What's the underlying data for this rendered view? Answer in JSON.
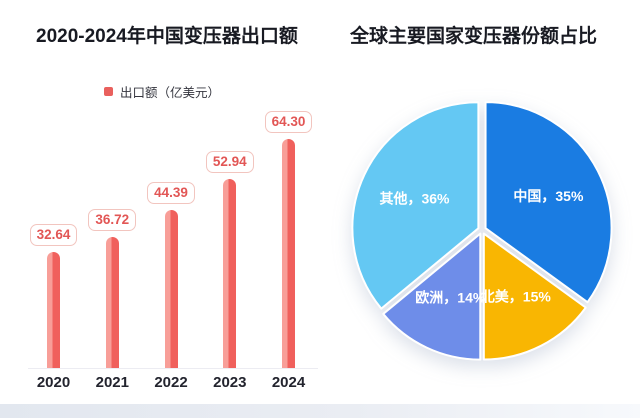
{
  "page": {
    "background_color": "#ffffff",
    "footer_strip_color": "#e2e7ef"
  },
  "chart_data": [
    {
      "type": "bar",
      "title": "2020-2024年中国变压器出口额",
      "legend_label": "出口额（亿美元）",
      "legend_marker_color": "#e9605d",
      "categories": [
        "2020",
        "2021",
        "2022",
        "2023",
        "2024"
      ],
      "values": [
        32.64,
        36.72,
        44.39,
        52.94,
        64.3
      ],
      "value_labels": [
        "32.64",
        "36.72",
        "44.39",
        "52.94",
        "64.30"
      ],
      "bar_color": "#f0605c",
      "bar_color_light": "#f89e98",
      "value_label_color": "#e25655",
      "value_label_border_color": "#f2c5bf",
      "xlabel": "",
      "ylabel": "",
      "ylim": [
        0,
        70
      ],
      "grid": false,
      "data_labels": true,
      "legend_position": "top-center"
    },
    {
      "type": "pie",
      "title": "全球主要国家变压器份额占比",
      "slices": [
        {
          "name": "china",
          "label": "中国",
          "value": 35,
          "display": "中国，35%",
          "color": "#1a7ce2"
        },
        {
          "name": "north-america",
          "label": "北美",
          "value": 15,
          "display": "北美，15%",
          "color": "#f9b602"
        },
        {
          "name": "europe",
          "label": "欧洲",
          "value": 14,
          "display": "欧洲，14%",
          "color": "#6e8de9"
        },
        {
          "name": "others",
          "label": "其他",
          "value": 36,
          "display": "其他，36%",
          "color": "#64c8f3"
        }
      ],
      "start_angle_deg": 0,
      "direction": "clockwise",
      "labels_on_slices": true,
      "label_text_color": "#ffffff"
    }
  ]
}
